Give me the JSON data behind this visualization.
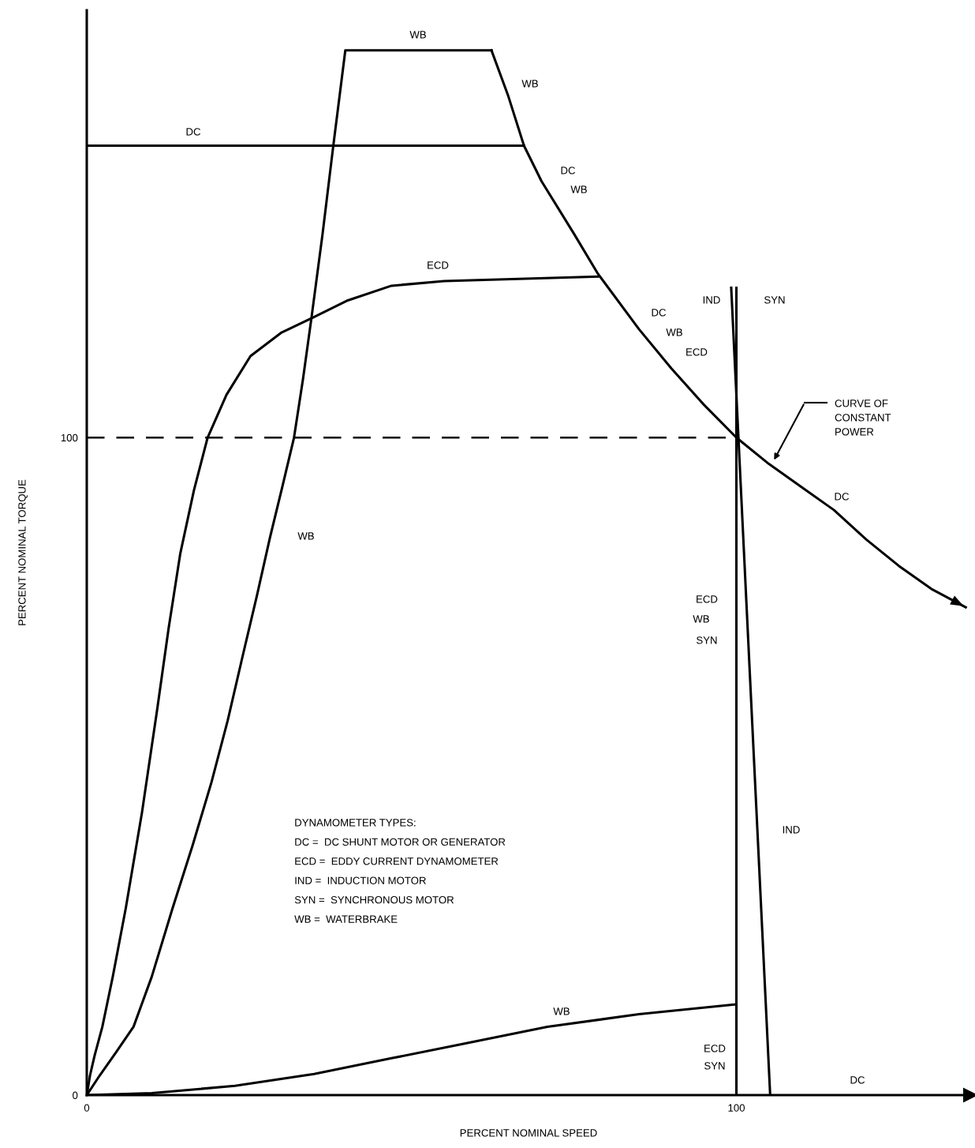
{
  "chart_data": {
    "type": "line",
    "xlabel": "PERCENT NOMINAL SPEED",
    "ylabel": "PERCENT NOMINAL TORQUE",
    "xlim": [
      0,
      136
    ],
    "ylim": [
      0,
      165
    ],
    "xticks": [
      0,
      100
    ],
    "yticks": [
      0,
      100
    ],
    "grid": false,
    "marker": "none",
    "series": [
      {
        "color": "#000000",
        "x": [
          0,
          67.3
        ],
        "values": [
          144.4,
          144.4
        ]
      },
      {
        "color": "#000000",
        "x": [
          62.3,
          64.9,
          67.3,
          70,
          75,
          78.7,
          85,
          90,
          95,
          100,
          105,
          110,
          115,
          120,
          125,
          130,
          135.3
        ],
        "values": [
          158.9,
          151.9,
          144.4,
          139,
          131,
          124.9,
          116.5,
          110.5,
          105,
          100,
          96,
          92.5,
          89,
          84.5,
          80.5,
          77,
          74.2
        ]
      },
      {
        "color": "#000000",
        "x": [
          0,
          2,
          4.5,
          7.2,
          10,
          13.2,
          16.3,
          19.2,
          21.7,
          24,
          26.2,
          28.2,
          30.1,
          31.9,
          33.3,
          34.6,
          36.3,
          37.9,
          39.8,
          62.3
        ],
        "values": [
          0,
          3,
          6.5,
          10.4,
          18,
          28.4,
          38,
          47.6,
          57,
          66.8,
          76,
          84.8,
          92.5,
          100,
          109,
          118.3,
          131,
          144,
          158.9,
          158.9
        ]
      },
      {
        "color": "#000000",
        "x": [
          0,
          0.5,
          1.2,
          2.4,
          4,
          6,
          8.5,
          10.8,
          12.6,
          14.4,
          16.5,
          18.6,
          21.5,
          25.2,
          30,
          34.9,
          40,
          46.9,
          55,
          78.7
        ],
        "values": [
          0,
          3,
          6,
          10.4,
          18,
          28.4,
          43,
          58.4,
          71,
          82.4,
          92,
          100,
          106.5,
          112.4,
          116,
          118.3,
          120.8,
          123.1,
          123.8,
          124.5
        ]
      },
      {
        "color": "#000000",
        "x": [
          0,
          10,
          22.8,
          35,
          46.9,
          58,
          70.9,
          85,
          100,
          100
        ],
        "values": [
          0,
          0.3,
          1.4,
          3.2,
          5.6,
          7.8,
          10.4,
          12.3,
          13.8,
          0
        ]
      },
      {
        "color": "#000000",
        "x": [
          100,
          100
        ],
        "values": [
          0,
          122.8
        ]
      },
      {
        "color": "#000000",
        "x": [
          99.2,
          105.2
        ],
        "values": [
          122.8,
          0
        ]
      }
    ],
    "ref_lines": [
      {
        "axis": "y",
        "value": 100,
        "color": "#000000",
        "line_style": "dashed"
      }
    ],
    "annotations": [
      "WB",
      "WB",
      "DC",
      "DC",
      "WB",
      "ECD",
      "IND",
      "SYN",
      "DC",
      "WB",
      "ECD",
      "CURVE OF\nCONSTANT\nPOWER",
      "DC",
      "WB",
      "ECD",
      "WB",
      "SYN",
      "IND",
      "WB",
      "ECD",
      "SYN",
      "DC",
      "DYNAMOMETER TYPES:",
      "DC =  DC SHUNT MOTOR OR GENERATOR",
      "ECD =  EDDY CURRENT DYNAMOMETER",
      "IND =  INDUCTION MOTOR",
      "SYN =  SYNCHRONOUS MOTOR",
      "WB =  WATERBRAKE"
    ]
  }
}
